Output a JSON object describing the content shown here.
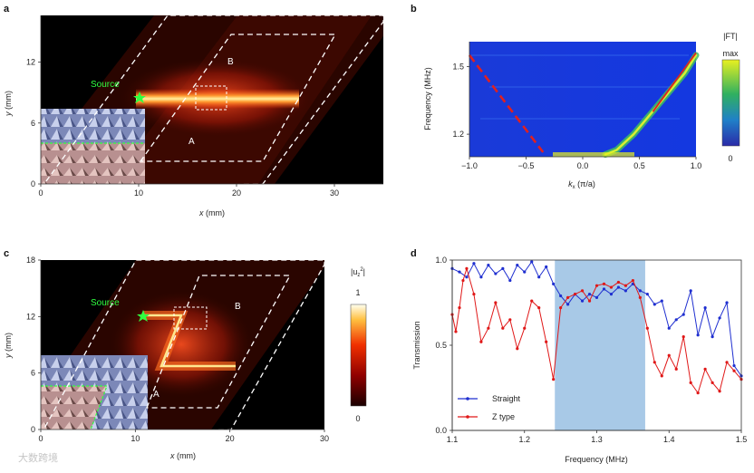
{
  "panel_labels": [
    "a",
    "b",
    "c",
    "d"
  ],
  "watermark": "大数跨境",
  "chart_data": [
    {
      "panel": "a",
      "type": "heatmap",
      "xlabel_var": "x",
      "xlabel_unit": "(mm)",
      "ylabel_var": "y",
      "ylabel_unit": "(mm)",
      "xticks": [
        0,
        10,
        20,
        30
      ],
      "yticks": [
        0,
        6,
        12
      ],
      "xlim": [
        0,
        35
      ],
      "ylim": [
        0,
        16.6
      ],
      "annotations": {
        "source": "Source",
        "region_a": "A",
        "region_b": "B"
      }
    },
    {
      "panel": "b",
      "type": "heatmap",
      "xlabel_var": "k",
      "xlabel_sub": "x",
      "xlabel_unit": "(π/a)",
      "ylabel": "Frequency (MHz)",
      "xticks": [
        "−1.0",
        "−0.5",
        "0.0",
        "0.5",
        "1.0"
      ],
      "xtick_values": [
        -1.0,
        -0.5,
        0.0,
        0.5,
        1.0
      ],
      "yticks": [
        "1.2",
        "1.5"
      ],
      "ytick_values": [
        1.2,
        1.5
      ],
      "xlim": [
        -1.0,
        1.0
      ],
      "ylim": [
        1.1,
        1.61
      ],
      "colorbar": {
        "title": "|FT|",
        "max_label": "max",
        "min_label": "0"
      },
      "dashed_line": {
        "k": [
          -1.0,
          -0.35
        ],
        "f": [
          1.55,
          1.12
        ]
      },
      "bright_band": {
        "k": [
          0.2,
          0.3,
          0.45,
          0.6,
          0.75,
          0.9,
          1.0
        ],
        "f": [
          1.11,
          1.13,
          1.2,
          1.29,
          1.38,
          1.47,
          1.55
        ]
      }
    },
    {
      "panel": "c",
      "type": "heatmap",
      "xlabel_var": "x",
      "xlabel_unit": "(mm)",
      "ylabel_var": "y",
      "ylabel_unit": "(mm)",
      "xticks": [
        0,
        10,
        20,
        30
      ],
      "yticks": [
        0,
        6,
        12,
        18
      ],
      "xlim": [
        0,
        30
      ],
      "ylim": [
        0,
        18
      ],
      "annotations": {
        "source": "Source",
        "region_a": "A",
        "region_b": "B"
      },
      "colorbar": {
        "title_base": "|u",
        "title_sub": "z",
        "title_sup": "2",
        "title_end": "|",
        "max_label": "1",
        "min_label": "0"
      }
    },
    {
      "panel": "d",
      "type": "line",
      "xlabel": "Frequency (MHz)",
      "ylabel": "Transmission",
      "xticks": [
        "1.1",
        "1.2",
        "1.3",
        "1.4",
        "1.5"
      ],
      "xtick_values": [
        1.1,
        1.2,
        1.3,
        1.4,
        1.5
      ],
      "yticks": [
        "0.0",
        "0.5",
        "1.0"
      ],
      "ytick_values": [
        0.0,
        0.5,
        1.0
      ],
      "xlim": [
        1.1,
        1.5
      ],
      "ylim": [
        0.0,
        1.0
      ],
      "shaded_band": [
        1.242,
        1.367
      ],
      "legend_position": "bottom-left",
      "series": [
        {
          "name": "Straight",
          "color": "#1f2fd0",
          "x": [
            1.1,
            1.11,
            1.12,
            1.13,
            1.14,
            1.15,
            1.16,
            1.17,
            1.18,
            1.19,
            1.2,
            1.21,
            1.22,
            1.23,
            1.24,
            1.25,
            1.26,
            1.27,
            1.28,
            1.29,
            1.3,
            1.31,
            1.32,
            1.33,
            1.34,
            1.35,
            1.36,
            1.37,
            1.38,
            1.39,
            1.4,
            1.41,
            1.42,
            1.43,
            1.44,
            1.45,
            1.46,
            1.47,
            1.48,
            1.49,
            1.5
          ],
          "y": [
            0.95,
            0.93,
            0.9,
            0.98,
            0.9,
            0.97,
            0.92,
            0.95,
            0.88,
            0.97,
            0.93,
            0.99,
            0.9,
            0.96,
            0.86,
            0.79,
            0.74,
            0.8,
            0.76,
            0.8,
            0.78,
            0.83,
            0.8,
            0.84,
            0.82,
            0.86,
            0.82,
            0.8,
            0.74,
            0.76,
            0.6,
            0.65,
            0.68,
            0.82,
            0.56,
            0.72,
            0.55,
            0.66,
            0.75,
            0.38,
            0.32
          ]
        },
        {
          "name": "Z type",
          "color": "#e01818",
          "x": [
            1.1,
            1.105,
            1.11,
            1.115,
            1.12,
            1.13,
            1.14,
            1.15,
            1.16,
            1.17,
            1.18,
            1.19,
            1.2,
            1.21,
            1.22,
            1.23,
            1.24,
            1.25,
            1.26,
            1.27,
            1.28,
            1.29,
            1.3,
            1.31,
            1.32,
            1.33,
            1.34,
            1.35,
            1.36,
            1.37,
            1.38,
            1.39,
            1.4,
            1.41,
            1.42,
            1.43,
            1.44,
            1.45,
            1.46,
            1.47,
            1.48,
            1.49,
            1.5
          ],
          "y": [
            0.68,
            0.58,
            0.72,
            0.88,
            0.95,
            0.8,
            0.52,
            0.6,
            0.75,
            0.6,
            0.65,
            0.48,
            0.6,
            0.76,
            0.72,
            0.52,
            0.3,
            0.72,
            0.78,
            0.8,
            0.82,
            0.76,
            0.85,
            0.86,
            0.84,
            0.87,
            0.85,
            0.88,
            0.78,
            0.6,
            0.4,
            0.32,
            0.44,
            0.36,
            0.55,
            0.28,
            0.22,
            0.36,
            0.28,
            0.23,
            0.4,
            0.35,
            0.3
          ]
        }
      ]
    }
  ]
}
